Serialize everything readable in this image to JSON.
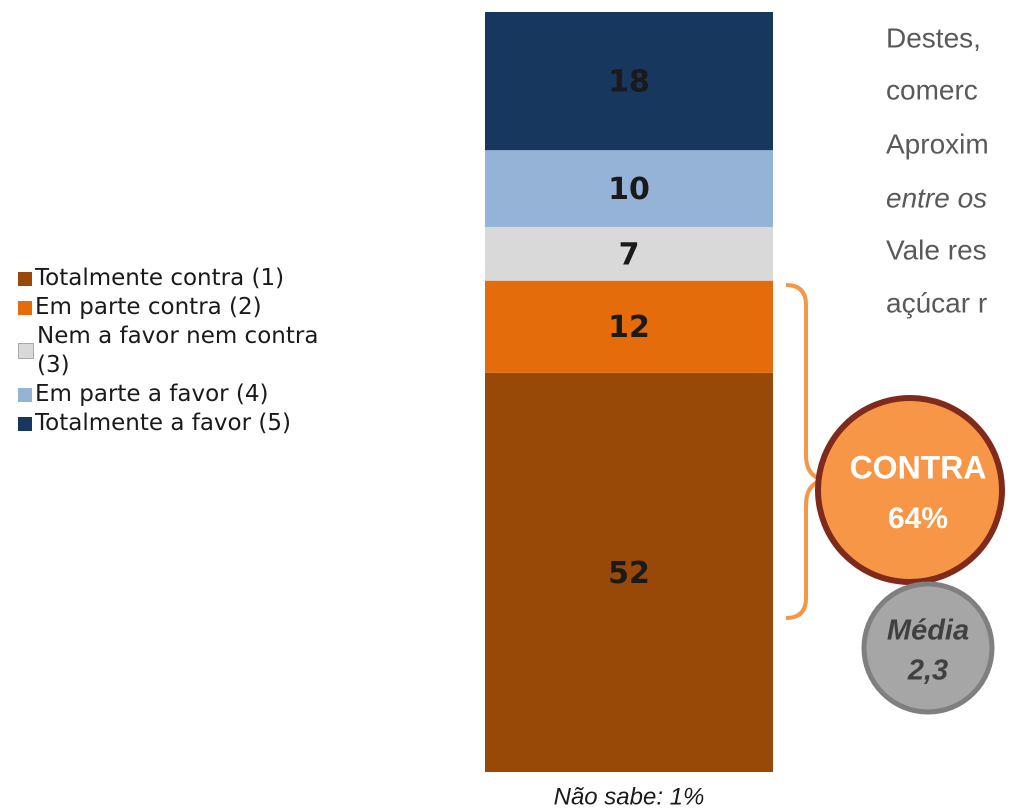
{
  "chart_data": {
    "type": "stacked_bar",
    "series": [
      {
        "name": "Totalmente contra (1)",
        "color": "#984807",
        "values": [
          52
        ]
      },
      {
        "name": "Em parte contra (2)",
        "color": "#e46c0a",
        "values": [
          12
        ]
      },
      {
        "name": "Nem a favor nem contra (3)",
        "color": "#d9d9d9",
        "values": [
          7
        ]
      },
      {
        "name": "Em parte a favor (4)",
        "color": "#95b3d7",
        "values": [
          10
        ]
      },
      {
        "name": "Totalmente a favor (5)",
        "color": "#17375e",
        "values": [
          18
        ]
      }
    ],
    "footnote": "Não sabe: 1%",
    "annotation": {
      "label": "CONTRA",
      "value": "64%"
    },
    "mean": {
      "label": "Média",
      "value": "2,3"
    }
  },
  "side_text": [
    "Destes,",
    "comerc",
    "Aproxim",
    "entre os",
    "Vale res",
    "açúcar r"
  ]
}
